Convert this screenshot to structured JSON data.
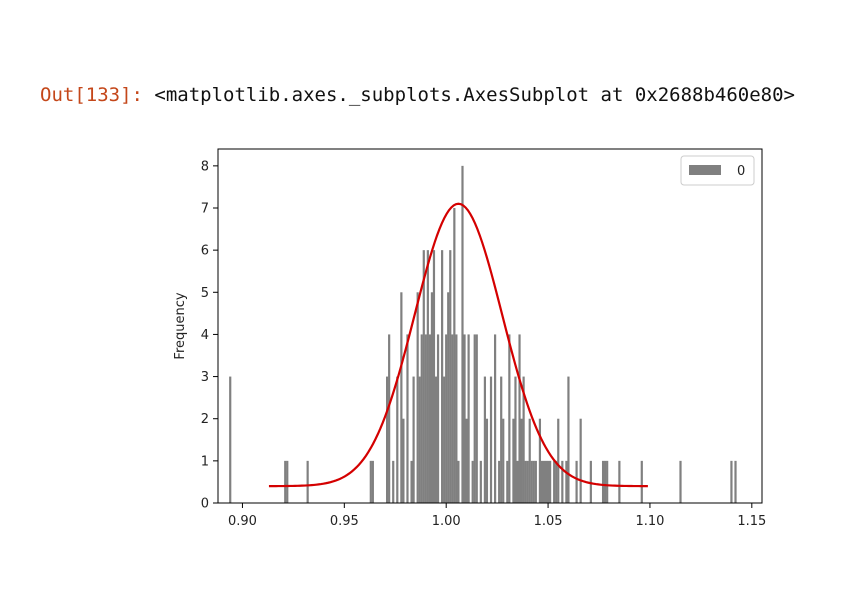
{
  "cell": {
    "prompt": "Out[133]:",
    "output": "<matplotlib.axes._subplots.AxesSubplot at 0x2688b460e80>"
  },
  "chart_data": {
    "type": "bar",
    "ylabel": "Frequency",
    "xlabel": "",
    "xlim": [
      0.888,
      1.155
    ],
    "ylim": [
      0,
      8.4
    ],
    "xticks": [
      0.9,
      0.95,
      1.0,
      1.05,
      1.1,
      1.15
    ],
    "xtick_labels": [
      "0.90",
      "0.95",
      "1.00",
      "1.05",
      "1.10",
      "1.15"
    ],
    "yticks": [
      0,
      1,
      2,
      3,
      4,
      5,
      6,
      7,
      8
    ],
    "ytick_labels": [
      "0",
      "1",
      "2",
      "3",
      "4",
      "5",
      "6",
      "7",
      "8"
    ],
    "legend": {
      "label": "0",
      "position": "upper right"
    },
    "bar_color": "#808080",
    "curve_color": "#d40000",
    "series": [
      {
        "name": "0",
        "x": [
          0.894,
          0.921,
          0.922,
          0.932,
          0.963,
          0.964,
          0.971,
          0.972,
          0.974,
          0.976,
          0.978,
          0.979,
          0.981,
          0.983,
          0.984,
          0.986,
          0.987,
          0.988,
          0.989,
          0.99,
          0.991,
          0.992,
          0.993,
          0.994,
          0.995,
          0.996,
          0.998,
          0.999,
          1.0,
          1.001,
          1.002,
          1.003,
          1.004,
          1.005,
          1.006,
          1.008,
          1.009,
          1.01,
          1.011,
          1.013,
          1.014,
          1.015,
          1.017,
          1.019,
          1.02,
          1.022,
          1.024,
          1.026,
          1.027,
          1.028,
          1.03,
          1.031,
          1.033,
          1.034,
          1.035,
          1.036,
          1.037,
          1.038,
          1.039,
          1.04,
          1.041,
          1.042,
          1.043,
          1.044,
          1.046,
          1.047,
          1.048,
          1.049,
          1.05,
          1.051,
          1.053,
          1.054,
          1.055,
          1.057,
          1.059,
          1.06,
          1.064,
          1.066,
          1.071,
          1.077,
          1.078,
          1.079,
          1.085,
          1.096,
          1.115,
          1.14,
          1.142
        ],
        "values": [
          3,
          1,
          1,
          1,
          1,
          1,
          3,
          4,
          1,
          3,
          5,
          2,
          4,
          1,
          3,
          5,
          3,
          4,
          6,
          4,
          6,
          4,
          5,
          6,
          3,
          4,
          6,
          3,
          4,
          5,
          6,
          4,
          7,
          4,
          1,
          8,
          4,
          2,
          4,
          1,
          4,
          4,
          1,
          3,
          2,
          3,
          4,
          1,
          3,
          2,
          1,
          4,
          2,
          3,
          1,
          4,
          2,
          3,
          1,
          1,
          2,
          1,
          1,
          1,
          2,
          1,
          1,
          1,
          1,
          1,
          1,
          1,
          2,
          1,
          1,
          3,
          1,
          2,
          1,
          1,
          1,
          1,
          1,
          1,
          1,
          1,
          1
        ]
      }
    ],
    "curve": {
      "type": "normal-fit",
      "mean": 1.006,
      "sd": 0.0215,
      "peak": 7.1,
      "baseline": 0.4,
      "x_range": [
        0.913,
        1.099
      ]
    }
  }
}
